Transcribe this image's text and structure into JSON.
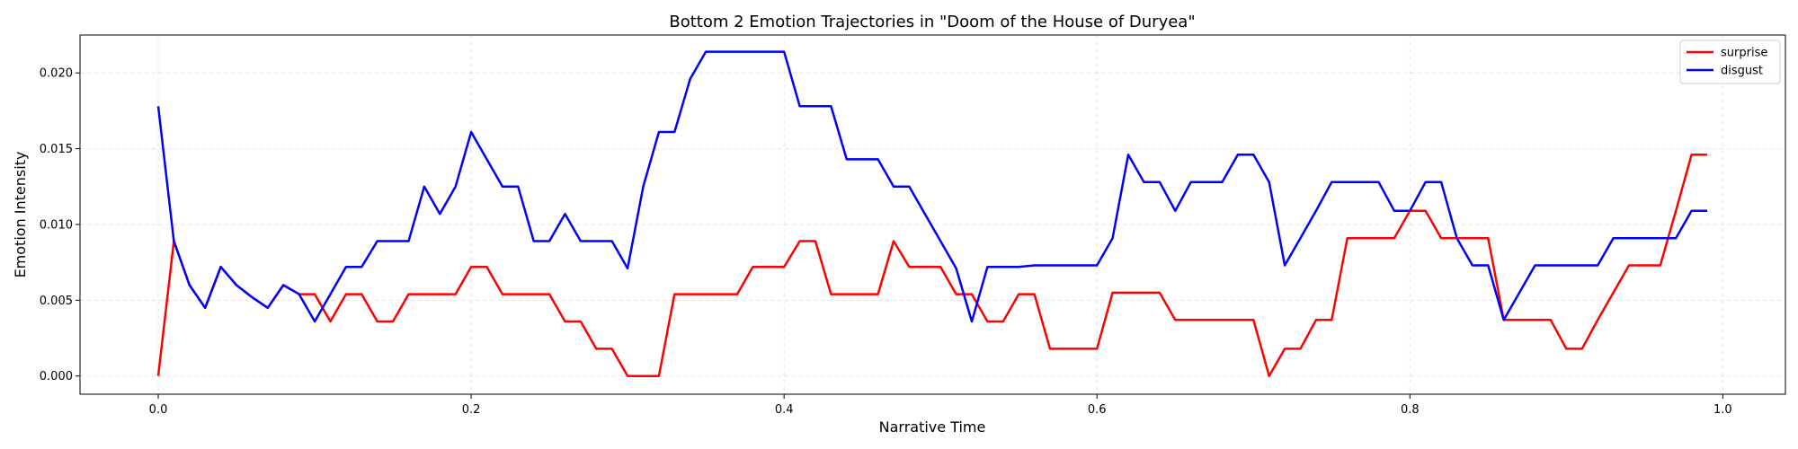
{
  "chart_data": {
    "type": "line",
    "title": "Bottom 2 Emotion Trajectories in \"Doom of the House of Duryea\"",
    "xlabel": "Narrative Time",
    "ylabel": "Emotion Intensity",
    "xlim": [
      -0.05,
      1.04
    ],
    "ylim": [
      -0.0012,
      0.0225
    ],
    "xticks": [
      0.0,
      0.2,
      0.4,
      0.6,
      0.8,
      1.0
    ],
    "xtick_labels": [
      "0.0",
      "0.2",
      "0.4",
      "0.6",
      "0.8",
      "1.0"
    ],
    "yticks": [
      0.0,
      0.005,
      0.01,
      0.015,
      0.02
    ],
    "ytick_labels": [
      "0.000",
      "0.005",
      "0.010",
      "0.015",
      "0.020"
    ],
    "grid": true,
    "legend_position": "top-right",
    "x": [
      0.0,
      0.01,
      0.02,
      0.03,
      0.04,
      0.05,
      0.06,
      0.07,
      0.08,
      0.09,
      0.1,
      0.11,
      0.12,
      0.13,
      0.14,
      0.15,
      0.16,
      0.17,
      0.18,
      0.19,
      0.2,
      0.21,
      0.22,
      0.23,
      0.24,
      0.25,
      0.26,
      0.27,
      0.28,
      0.29,
      0.3,
      0.31,
      0.32,
      0.33,
      0.34,
      0.35,
      0.36,
      0.37,
      0.38,
      0.39,
      0.4,
      0.41,
      0.42,
      0.43,
      0.44,
      0.45,
      0.46,
      0.47,
      0.48,
      0.49,
      0.5,
      0.51,
      0.52,
      0.53,
      0.54,
      0.55,
      0.56,
      0.57,
      0.58,
      0.59,
      0.6,
      0.61,
      0.62,
      0.63,
      0.64,
      0.65,
      0.66,
      0.67,
      0.68,
      0.69,
      0.7,
      0.71,
      0.72,
      0.73,
      0.74,
      0.75,
      0.76,
      0.77,
      0.78,
      0.79,
      0.8,
      0.81,
      0.82,
      0.83,
      0.84,
      0.85,
      0.86,
      0.87,
      0.88,
      0.89,
      0.9,
      0.91,
      0.92,
      0.93,
      0.94,
      0.95,
      0.96,
      0.97,
      0.98,
      0.99
    ],
    "series": [
      {
        "name": "surprise",
        "color": "#ff0000",
        "values": [
          0.0,
          0.0089,
          0.006,
          0.0045,
          0.0072,
          0.006,
          0.0052,
          0.0045,
          0.006,
          0.0054,
          0.0054,
          0.0036,
          0.0054,
          0.0054,
          0.0036,
          0.0036,
          0.0054,
          0.0054,
          0.0054,
          0.0054,
          0.0072,
          0.0072,
          0.0054,
          0.0054,
          0.0054,
          0.0054,
          0.0036,
          0.0036,
          0.0018,
          0.0018,
          0.0,
          0.0,
          0.0,
          0.0054,
          0.0054,
          0.0054,
          0.0054,
          0.0054,
          0.0072,
          0.0072,
          0.0072,
          0.0089,
          0.0089,
          0.0054,
          0.0054,
          0.0054,
          0.0054,
          0.0089,
          0.0072,
          0.0072,
          0.0072,
          0.0054,
          0.0054,
          0.0036,
          0.0036,
          0.0054,
          0.0054,
          0.0018,
          0.0018,
          0.0018,
          0.0018,
          0.0055,
          0.0055,
          0.0055,
          0.0055,
          0.0037,
          0.0037,
          0.0037,
          0.0037,
          0.0037,
          0.0037,
          0.0,
          0.0018,
          0.0018,
          0.0037,
          0.0037,
          0.0091,
          0.0091,
          0.0091,
          0.0091,
          0.0109,
          0.0109,
          0.0091,
          0.0091,
          0.0091,
          0.0091,
          0.0037,
          0.0037,
          0.0037,
          0.0037,
          0.0018,
          0.0018,
          0.0037,
          0.0055,
          0.0073,
          0.0073,
          0.0073,
          0.0109,
          0.0146,
          0.0146
        ]
      },
      {
        "name": "disgust",
        "color": "#0000ff",
        "values": [
          0.0178,
          0.0089,
          0.006,
          0.0045,
          0.0072,
          0.006,
          0.0052,
          0.0045,
          0.006,
          0.0054,
          0.0036,
          0.0054,
          0.0072,
          0.0072,
          0.0089,
          0.0089,
          0.0089,
          0.0125,
          0.0107,
          0.0125,
          0.0161,
          0.0143,
          0.0125,
          0.0125,
          0.0089,
          0.0089,
          0.0107,
          0.0089,
          0.0089,
          0.0089,
          0.0071,
          0.0125,
          0.0161,
          0.0161,
          0.0196,
          0.0214,
          0.0214,
          0.0214,
          0.0214,
          0.0214,
          0.0214,
          0.0178,
          0.0178,
          0.0178,
          0.0143,
          0.0143,
          0.0143,
          0.0125,
          0.0125,
          0.0107,
          0.0089,
          0.0071,
          0.0036,
          0.0072,
          0.0072,
          0.0072,
          0.0073,
          0.0073,
          0.0073,
          0.0073,
          0.0073,
          0.0091,
          0.0146,
          0.0128,
          0.0128,
          0.0109,
          0.0128,
          0.0128,
          0.0128,
          0.0146,
          0.0146,
          0.0128,
          0.0073,
          0.0091,
          0.0109,
          0.0128,
          0.0128,
          0.0128,
          0.0128,
          0.0109,
          0.0109,
          0.0128,
          0.0128,
          0.0091,
          0.0073,
          0.0073,
          0.0037,
          0.0055,
          0.0073,
          0.0073,
          0.0073,
          0.0073,
          0.0073,
          0.0091,
          0.0091,
          0.0091,
          0.0091,
          0.0091,
          0.0109,
          0.0109
        ]
      }
    ]
  }
}
